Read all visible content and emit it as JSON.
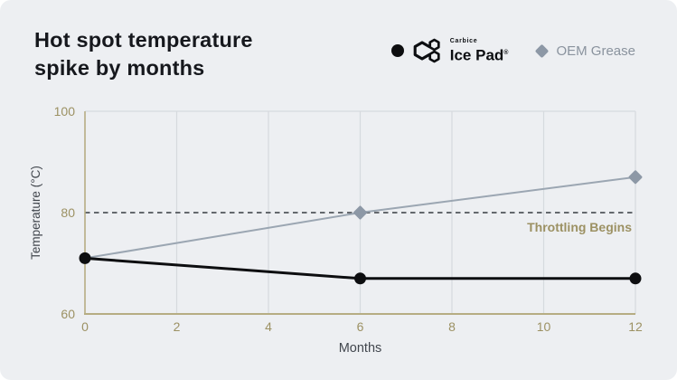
{
  "card": {
    "title_line1": "Hot spot temperature",
    "title_line2": "spike by months"
  },
  "legend": {
    "position": "top-right",
    "ice_pad": {
      "marker": "circle",
      "marker_color": "#0d0e10",
      "brand_small": "Carbice",
      "label": "Ice Pad",
      "trademark": "®",
      "logo_icon": "carbice-hexagons-logo"
    },
    "oem": {
      "marker": "diamond",
      "marker_color": "#8d98a6",
      "label": "OEM Grease"
    }
  },
  "chart_data": {
    "type": "line",
    "title": "Hot spot temperature spike by months",
    "xlabel": "Months",
    "ylabel": "Temperature (°C)",
    "xlim": [
      0,
      12
    ],
    "ylim": [
      60,
      100
    ],
    "xticks": [
      0,
      2,
      4,
      6,
      8,
      10,
      12
    ],
    "yticks": [
      60,
      80,
      100
    ],
    "grid": "vertical-only plus top boundary",
    "legend_position": "top-right",
    "series": [
      {
        "name": "OEM Grease",
        "color": "#9ba6b2",
        "marker": "diamond",
        "marker_color": "#8d98a6",
        "x": [
          0,
          6,
          12
        ],
        "y": [
          71,
          80,
          87
        ],
        "marker_at": [
          6,
          12
        ],
        "line_width": 2
      },
      {
        "name": "Carbice Ice Pad",
        "color": "#0d0e10",
        "marker": "circle",
        "marker_color": "#0d0e10",
        "x": [
          0,
          6,
          12
        ],
        "y": [
          71,
          67,
          67
        ],
        "marker_at": [
          0,
          6,
          12
        ],
        "line_width": 3
      }
    ],
    "threshold": {
      "value": 80,
      "label": "Throttling Begins",
      "line_color": "#64686d",
      "label_color": "#9c9163",
      "style": "dashed"
    },
    "axis_color": "#b6ad83",
    "tick_label_color": "#9c9163",
    "grid_color": "#d6dade",
    "axis_title_color": "#42474e",
    "background_color": "#edeff2"
  }
}
